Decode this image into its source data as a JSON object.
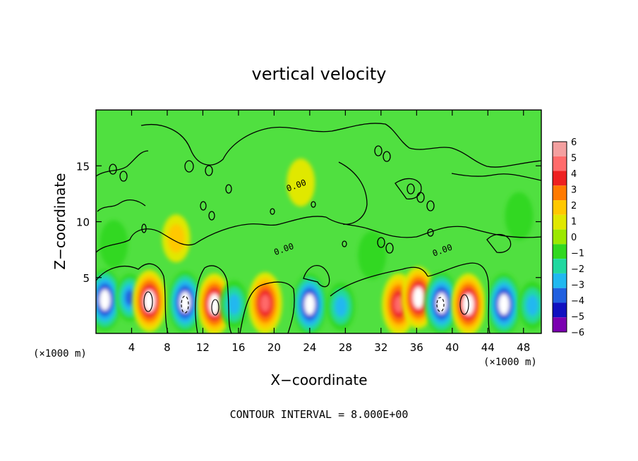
{
  "chart_data": {
    "type": "heatmap",
    "title": "vertical velocity",
    "xlabel": "X−coordinate",
    "ylabel": "Z−coordinate",
    "x_unit_left": "(×1000 m)",
    "x_unit_right": "(×1000 m)",
    "xlim": [
      0,
      50
    ],
    "ylim": [
      0,
      20
    ],
    "xticks": [
      "4",
      "8",
      "12",
      "16",
      "20",
      "24",
      "28",
      "32",
      "36",
      "40",
      "44",
      "48"
    ],
    "xtick_values": [
      4,
      8,
      12,
      16,
      20,
      24,
      28,
      32,
      36,
      40,
      44,
      48
    ],
    "yticks": [
      "5",
      "10",
      "15"
    ],
    "ytick_values": [
      5,
      10,
      15
    ],
    "footer": "CONTOUR INTERVAL = 8.000E+00",
    "contour_labels": [
      {
        "text": "0.00",
        "x": 22.6,
        "y": 13.0
      },
      {
        "text": "0.00",
        "x": 21.2,
        "y": 7.3
      },
      {
        "text": "0.00",
        "x": 39.0,
        "y": 7.2
      }
    ],
    "colorbar": {
      "labels": [
        "6",
        "5",
        "4",
        "3",
        "2",
        "1",
        "0",
        "−1",
        "−2",
        "−3",
        "−4",
        "−5",
        "−6"
      ],
      "colors": [
        "#f4a0a0",
        "#ff6b6b",
        "#ee2020",
        "#ff7a00",
        "#ffc800",
        "#e0e800",
        "#9be800",
        "#30d820",
        "#20d8a0",
        "#20b8f0",
        "#2060e0",
        "#1010c0",
        "#7a00b0"
      ]
    },
    "background_color": "#50e040",
    "cells": [
      {
        "x": 1.0,
        "y": 3.0,
        "value": -5.5
      },
      {
        "x": 3.8,
        "y": 3.2,
        "value": -3.5
      },
      {
        "x": 6.0,
        "y": 2.9,
        "value": 6
      },
      {
        "x": 10.0,
        "y": 2.8,
        "value": -6
      },
      {
        "x": 13.3,
        "y": 2.6,
        "value": 6
      },
      {
        "x": 15.5,
        "y": 2.6,
        "value": -3
      },
      {
        "x": 19.0,
        "y": 2.7,
        "value": 4.5
      },
      {
        "x": 24.0,
        "y": 2.6,
        "value": -5.5
      },
      {
        "x": 27.5,
        "y": 2.4,
        "value": -3
      },
      {
        "x": 34.0,
        "y": 2.6,
        "value": 4.5
      },
      {
        "x": 36.2,
        "y": 3.2,
        "value": 6
      },
      {
        "x": 38.8,
        "y": 2.7,
        "value": -6
      },
      {
        "x": 41.8,
        "y": 2.6,
        "value": 6
      },
      {
        "x": 45.8,
        "y": 2.6,
        "value": -5.5
      },
      {
        "x": 49.0,
        "y": 2.5,
        "value": -2.5
      },
      {
        "x": 9.0,
        "y": 8.5,
        "value": 2
      },
      {
        "x": 23.0,
        "y": 13.5,
        "value": 1
      },
      {
        "x": 31.0,
        "y": 7.0,
        "value": -1
      },
      {
        "x": 47.5,
        "y": 10.5,
        "value": -1
      },
      {
        "x": 2.0,
        "y": 8.0,
        "value": -1
      }
    ]
  }
}
